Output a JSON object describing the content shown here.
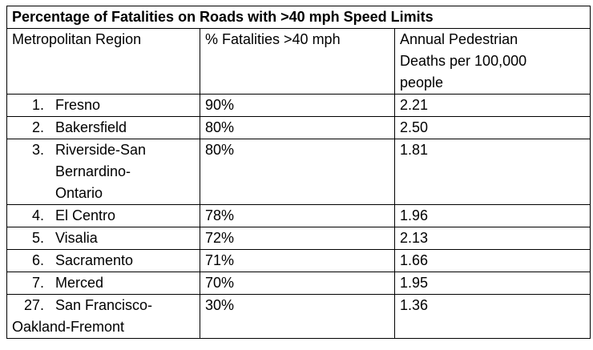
{
  "table": {
    "title": "Percentage of Fatalities on Roads with >40 mph Speed Limits",
    "headers": {
      "region": "Metropolitan Region",
      "pct": "% Fatalities >40 mph",
      "deaths_line1": "Annual Pedestrian",
      "deaths_line2": "Deaths per 100,000",
      "deaths_line3": "people"
    },
    "rows": [
      {
        "rank": "1.",
        "region": "Fresno",
        "pct": "90%",
        "deaths": "2.21"
      },
      {
        "rank": "2.",
        "region": "Bakersfield",
        "pct": "80%",
        "deaths": "2.50"
      },
      {
        "rank": "3.",
        "region_line1": "Riverside-San",
        "region_line2": "Bernardino-",
        "region_line3": "Ontario",
        "pct": "80%",
        "deaths": "1.81"
      },
      {
        "rank": "4.",
        "region": "El Centro",
        "pct": "78%",
        "deaths": "1.96"
      },
      {
        "rank": "5.",
        "region": "Visalia",
        "pct": "72%",
        "deaths": "2.13"
      },
      {
        "rank": "6.",
        "region": "Sacramento",
        "pct": "71%",
        "deaths": "1.66"
      },
      {
        "rank": "7.",
        "region": "Merced",
        "pct": "70%",
        "deaths": "1.95"
      },
      {
        "rank": "27.",
        "region_line1": "San Francisco-",
        "region_line2": "Oakland-Fremont",
        "pct": "30%",
        "deaths": "1.36"
      }
    ]
  }
}
